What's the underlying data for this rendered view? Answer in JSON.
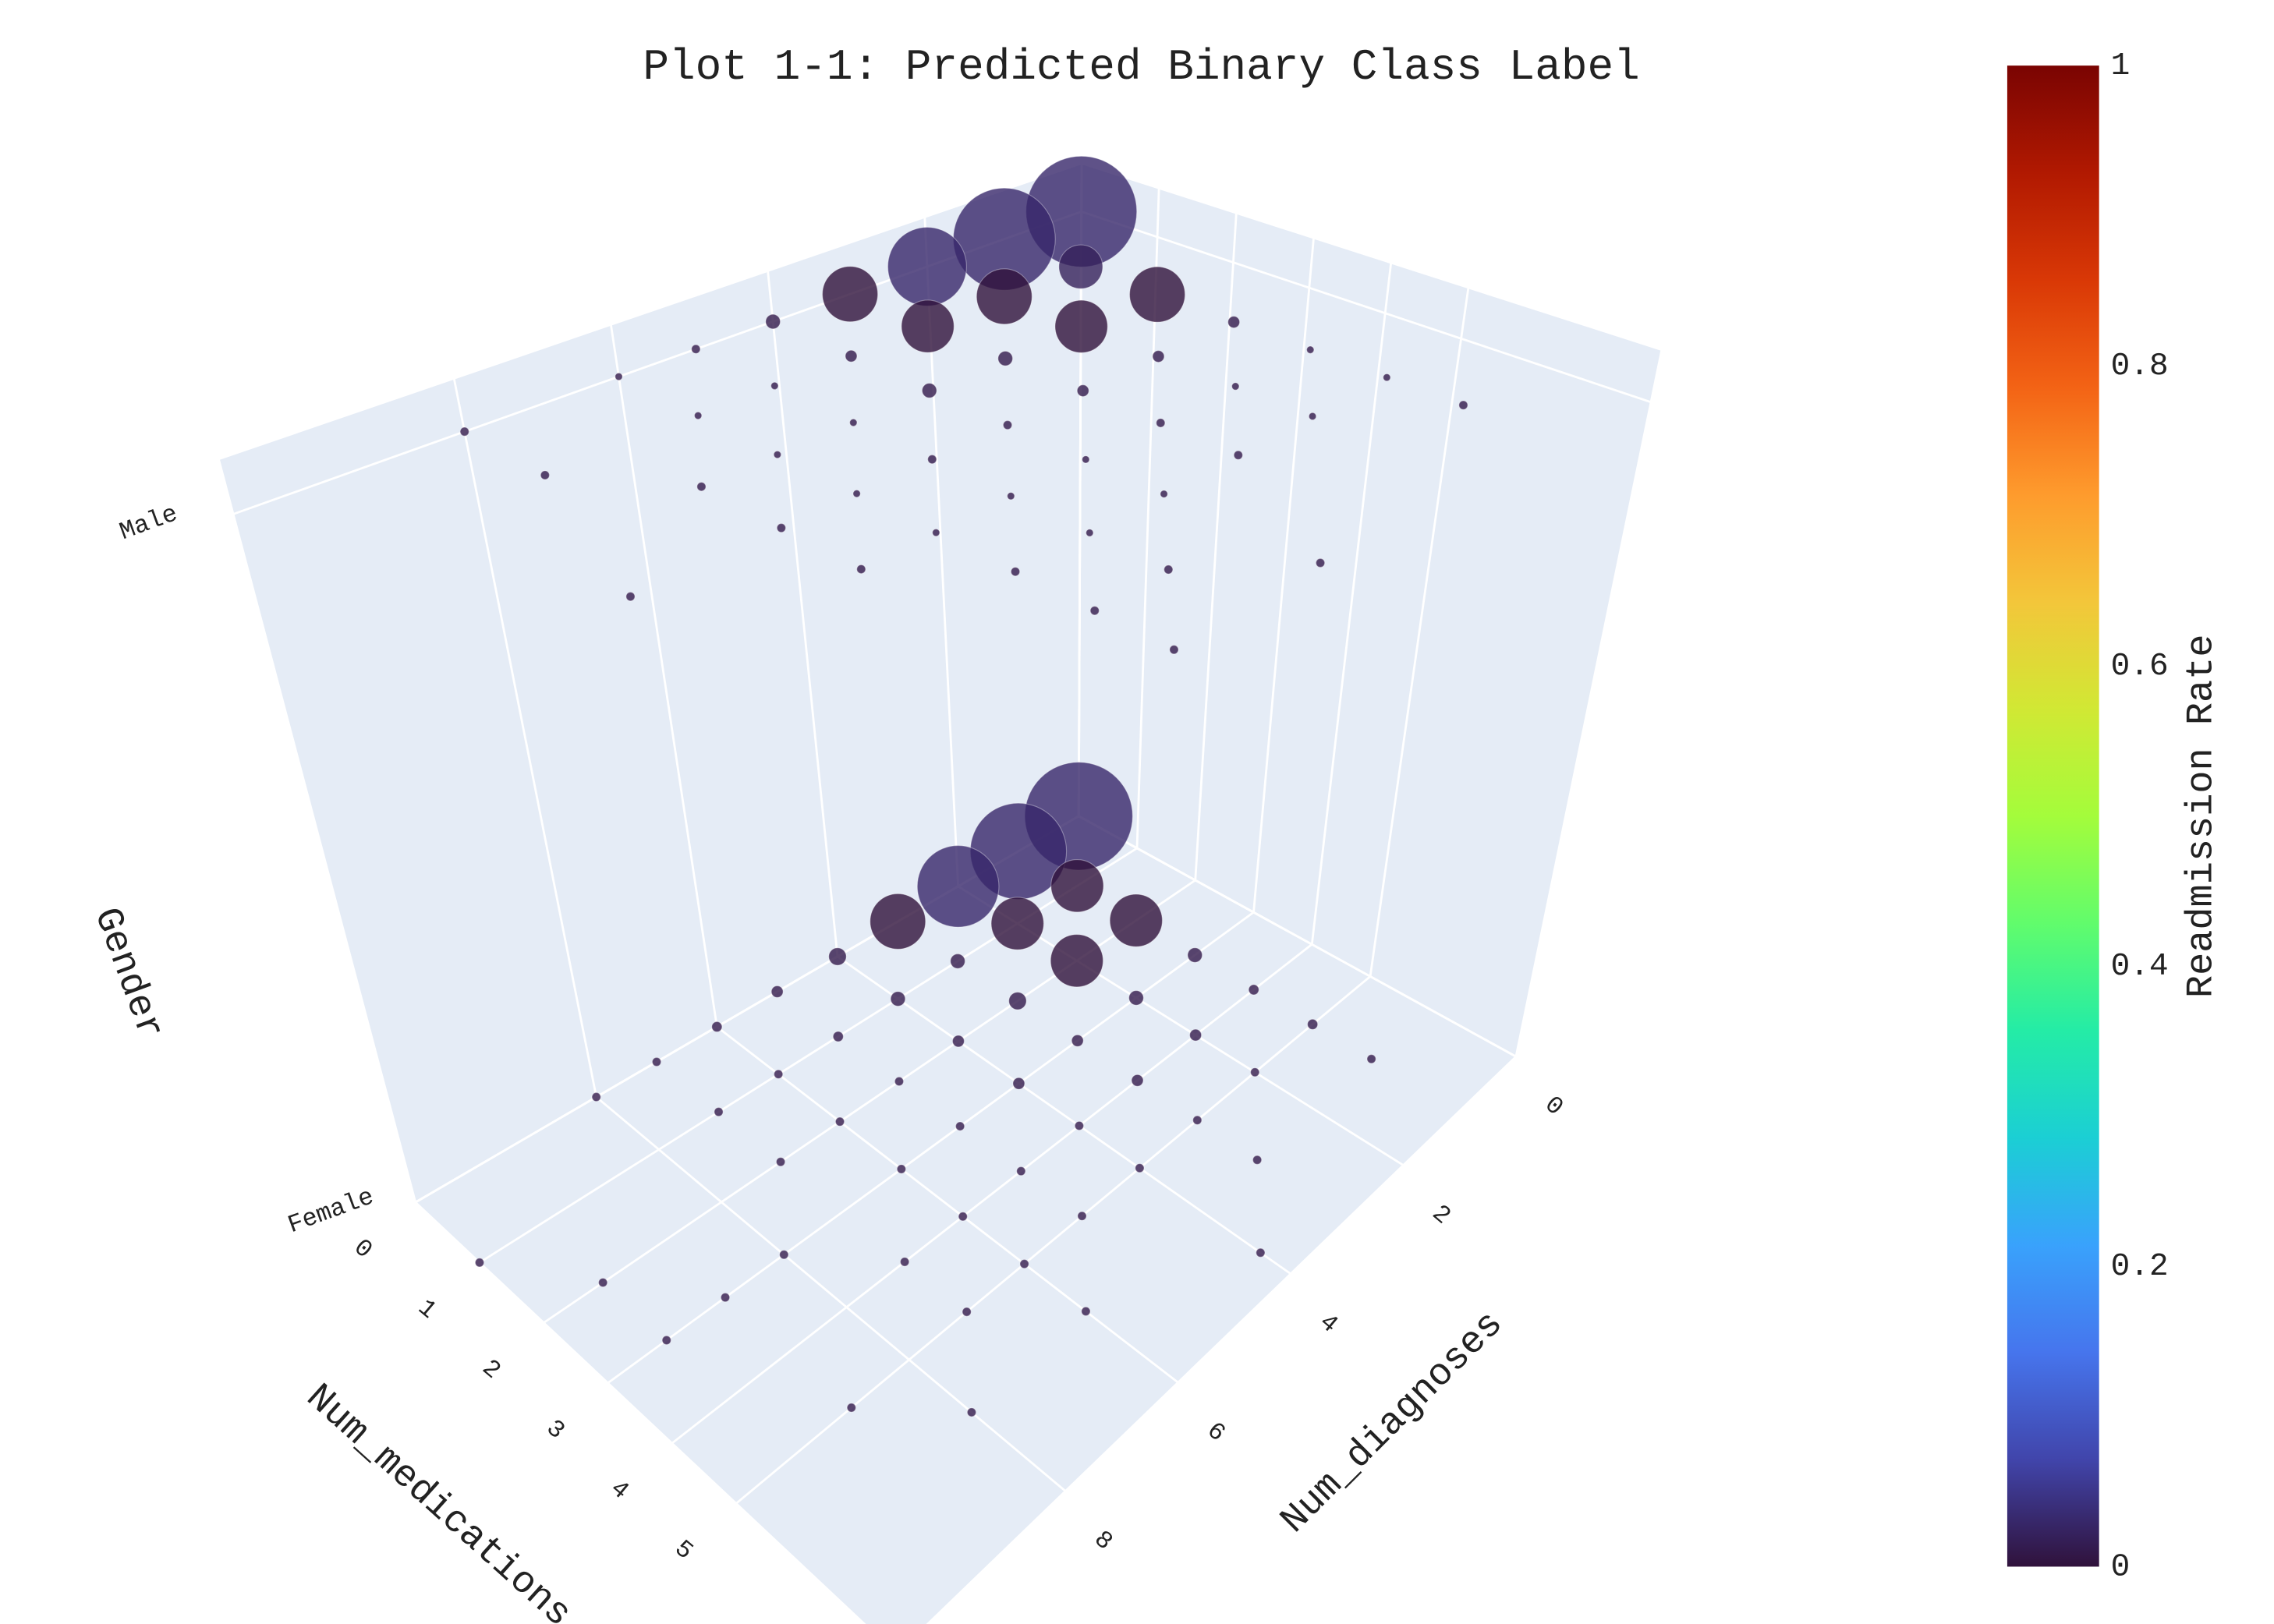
{
  "chart_data": {
    "type": "scatter3d",
    "title": "Plot 1-1: Predicted Binary Class Label",
    "xaxis_title": "Num_medications",
    "yaxis_title": "Num_diagnoses",
    "zaxis_title": "Gender",
    "xlim": [
      0,
      7.5
    ],
    "xticks": [
      0,
      1,
      2,
      3,
      4,
      5
    ],
    "ylim": [
      0,
      11
    ],
    "yticks": [
      0,
      2,
      4,
      6,
      8
    ],
    "zlim": [
      0,
      1.08
    ],
    "zticks": [
      {
        "value": 0,
        "label": "Female"
      },
      {
        "value": 1,
        "label": "Male"
      }
    ],
    "grid": true,
    "marker_opacity": 0.8,
    "series": [
      {
        "x": [
          0,
          0,
          0,
          1,
          0,
          1,
          2,
          0,
          1,
          2,
          3,
          0,
          1,
          2,
          3,
          4,
          0,
          1,
          2,
          3,
          4,
          5,
          0,
          1,
          2,
          3,
          4,
          5,
          6,
          0,
          1,
          2,
          3,
          4,
          5,
          2,
          3,
          4,
          5,
          6,
          4,
          5,
          3,
          4,
          5,
          7,
          1,
          2,
          3,
          5,
          6,
          3,
          5,
          6,
          0,
          0,
          0,
          1,
          0,
          1,
          2,
          0,
          1,
          2,
          3,
          0,
          1,
          2,
          3,
          4,
          0,
          1,
          2,
          3,
          4,
          5,
          1,
          2,
          3,
          4,
          5,
          6,
          0,
          2,
          3,
          4,
          5,
          1,
          2,
          3,
          4,
          5,
          3,
          4,
          5,
          4,
          5,
          6,
          7,
          3,
          6,
          7
        ],
        "y": [
          0,
          1,
          2,
          1,
          3,
          2,
          1,
          4,
          3,
          2,
          1,
          5,
          4,
          3,
          2,
          1,
          6,
          5,
          4,
          3,
          2,
          1,
          7,
          6,
          5,
          4,
          3,
          2,
          1,
          8,
          7,
          6,
          5,
          4,
          3,
          7,
          6,
          5,
          4,
          3,
          6,
          5,
          8,
          7,
          6,
          4,
          11,
          10,
          9,
          7,
          6,
          10,
          9,
          8,
          0,
          1,
          2,
          1,
          3,
          2,
          1,
          4,
          3,
          2,
          1,
          5,
          4,
          3,
          2,
          1,
          6,
          5,
          4,
          3,
          2,
          1,
          6,
          5,
          4,
          3,
          2,
          1,
          8,
          6,
          5,
          4,
          3,
          8,
          7,
          6,
          5,
          4,
          7,
          6,
          5,
          7,
          6,
          5,
          4,
          9,
          6,
          6
        ],
        "z": [
          0,
          0,
          0,
          0,
          0,
          0,
          0,
          0,
          0,
          0,
          0,
          0,
          0,
          0,
          0,
          0,
          0,
          0,
          0,
          0,
          0,
          0,
          0,
          0,
          0,
          0,
          0,
          0,
          0,
          0,
          0,
          0,
          0,
          0,
          0,
          0,
          0,
          0,
          0,
          0,
          0,
          0,
          0,
          0,
          0,
          0,
          0,
          0,
          0,
          0,
          0,
          0,
          0,
          0,
          1,
          1,
          1,
          1,
          1,
          1,
          1,
          1,
          1,
          1,
          1,
          1,
          1,
          1,
          1,
          1,
          1,
          1,
          1,
          1,
          1,
          1,
          1,
          1,
          1,
          1,
          1,
          1,
          1,
          1,
          1,
          1,
          1,
          1,
          1,
          1,
          1,
          1,
          1,
          1,
          1,
          1,
          1,
          1,
          1,
          1,
          1,
          1
        ],
        "size": [
          74,
          66,
          56,
          36,
          38,
          36,
          36,
          12,
          10,
          36,
          10,
          8,
          10,
          12,
          10,
          7,
          7,
          7,
          8,
          8,
          8,
          7,
          6,
          6,
          6,
          8,
          8,
          6,
          6,
          6,
          6,
          6,
          6,
          6,
          6,
          6,
          6,
          6,
          6,
          6,
          6,
          6,
          6,
          6,
          6,
          6,
          6,
          6,
          6,
          6,
          6,
          6,
          6,
          6,
          76,
          70,
          54,
          30,
          38,
          38,
          38,
          10,
          36,
          36,
          8,
          6,
          8,
          10,
          8,
          5,
          5,
          5,
          10,
          8,
          5,
          5,
          5,
          5,
          6,
          6,
          5,
          6,
          6,
          5,
          6,
          5,
          6,
          6,
          6,
          5,
          5,
          5,
          6,
          5,
          5,
          6,
          6,
          6,
          6,
          6,
          6,
          6
        ],
        "color_values": [
          0.03,
          0.03,
          0.03,
          0,
          0,
          0,
          0,
          0.01,
          0.01,
          0,
          0.01,
          0.01,
          0.01,
          0.01,
          0.01,
          0.01,
          0.01,
          0.01,
          0.01,
          0.01,
          0.01,
          0.01,
          0.01,
          0.01,
          0.01,
          0.01,
          0.01,
          0.01,
          0.01,
          0.01,
          0.01,
          0.01,
          0.01,
          0.01,
          0.01,
          0.01,
          0.01,
          0.01,
          0.01,
          0.01,
          0.01,
          0.01,
          0.01,
          0.01,
          0.01,
          0.01,
          0.01,
          0.01,
          0.01,
          0.01,
          0.01,
          0.01,
          0.01,
          0.01,
          0.03,
          0.03,
          0.03,
          0.02,
          0,
          0,
          0,
          0.01,
          0,
          0,
          0.01,
          0.01,
          0.01,
          0.01,
          0.01,
          0.01,
          0.01,
          0.01,
          0.01,
          0.01,
          0.01,
          0.01,
          0.01,
          0.01,
          0.01,
          0.01,
          0.01,
          0.01,
          0.01,
          0.01,
          0.01,
          0.01,
          0.01,
          0.01,
          0.01,
          0.01,
          0.01,
          0.01,
          0.01,
          0.01,
          0.01,
          0.01,
          0.01,
          0.01,
          0.01,
          0.01,
          0.01,
          0.01
        ]
      }
    ],
    "colorbar": {
      "title": "Readmission Rate",
      "clim": [
        0,
        1
      ],
      "cticks": [
        0,
        0.2,
        0.4,
        0.6,
        0.8,
        1
      ],
      "colorscale": [
        [
          0,
          "#30123b"
        ],
        [
          0.07142857,
          "#4145ab"
        ],
        [
          0.14285714,
          "#4675ed"
        ],
        [
          0.21428571,
          "#39a2fc"
        ],
        [
          0.28571429,
          "#1bcfd4"
        ],
        [
          0.35714286,
          "#24eca6"
        ],
        [
          0.42857143,
          "#61fc6c"
        ],
        [
          0.5,
          "#a4fc3b"
        ],
        [
          0.57142857,
          "#d1e834"
        ],
        [
          0.64285714,
          "#f3c63a"
        ],
        [
          0.71428571,
          "#fe9b2d"
        ],
        [
          0.78571429,
          "#f36315"
        ],
        [
          0.85714286,
          "#d93806"
        ],
        [
          0.92857143,
          "#b11901"
        ],
        [
          1,
          "#7a0402"
        ]
      ]
    }
  }
}
